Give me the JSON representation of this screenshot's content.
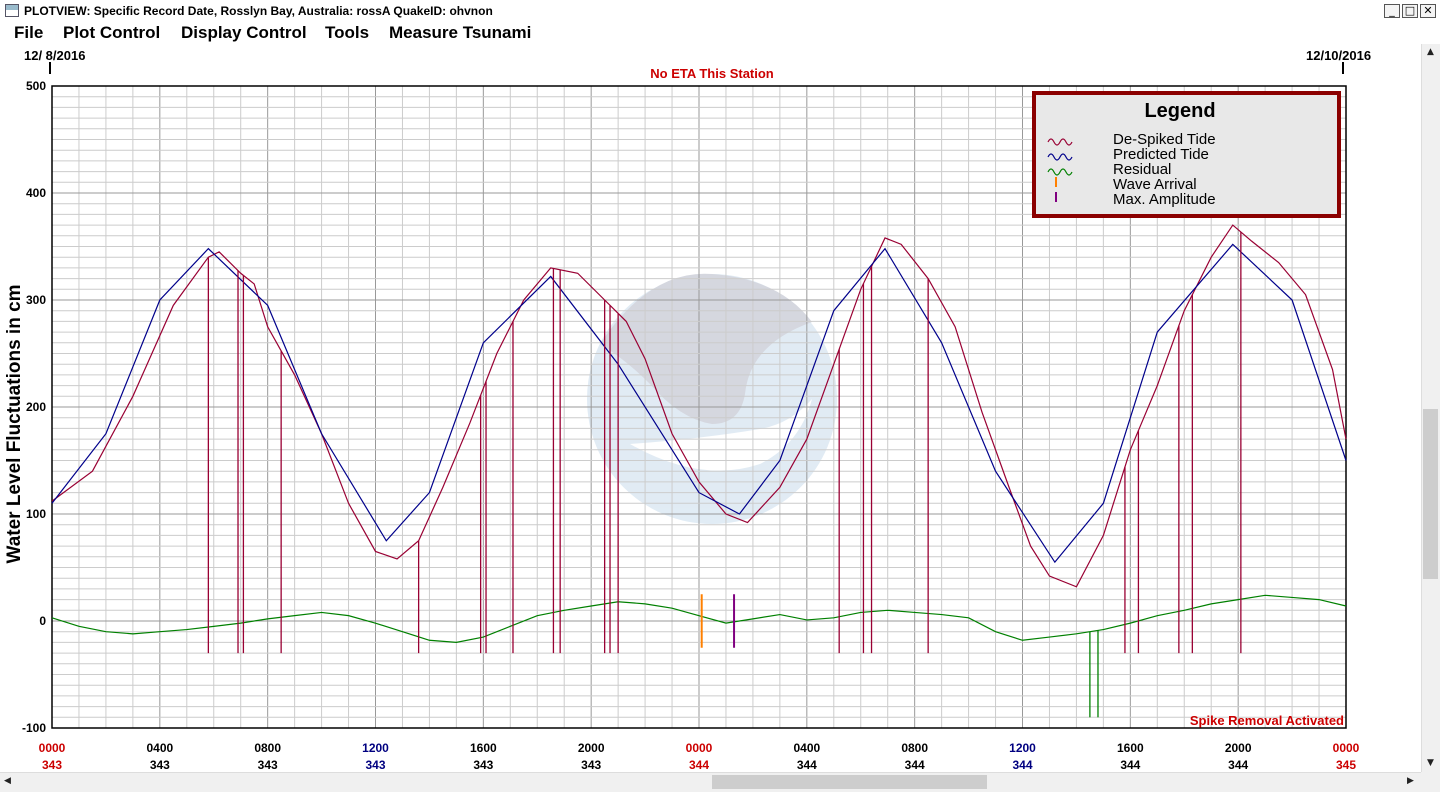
{
  "window": {
    "title": "PLOTVIEW: Specific Record Date, Rosslyn Bay, Australia: rossA     QuakeID: ohvnon",
    "controls": [
      "_",
      "□",
      "✕"
    ]
  },
  "menu": [
    "File",
    "Plot Control",
    "Display Control",
    "Tools",
    "Measure Tsunami"
  ],
  "header": {
    "start_date": "12/ 8/2016",
    "end_date": "12/10/2016",
    "eta_status": "No ETA This Station"
  },
  "footer_status": "Spike Removal Activated",
  "colors": {
    "de_spiked": "#990033",
    "predicted": "#00008b",
    "residual": "#008000",
    "wave_arrival": "#ff8000",
    "max_amplitude": "#800080",
    "status_red": "#cc0000",
    "time_blue": "#000080",
    "legend_border": "#8b0000"
  },
  "chart_data": {
    "type": "line",
    "ylabel": "Water Level Fluctuations in cm",
    "ylim": [
      -100,
      500
    ],
    "y_ticks": [
      -100,
      0,
      100,
      200,
      300,
      400,
      500
    ],
    "xlim": [
      0,
      48
    ],
    "x_tick_labels": [
      {
        "time": "0000",
        "day": "343"
      },
      {
        "time": "0400",
        "day": "343"
      },
      {
        "time": "0800",
        "day": "343"
      },
      {
        "time": "1200",
        "day": "343"
      },
      {
        "time": "1600",
        "day": "343"
      },
      {
        "time": "2000",
        "day": "343"
      },
      {
        "time": "0000",
        "day": "344"
      },
      {
        "time": "0400",
        "day": "344"
      },
      {
        "time": "0800",
        "day": "344"
      },
      {
        "time": "1200",
        "day": "344"
      },
      {
        "time": "1600",
        "day": "344"
      },
      {
        "time": "2000",
        "day": "344"
      },
      {
        "time": "0000",
        "day": "345"
      }
    ],
    "legend": {
      "title": "Legend",
      "entries": [
        "De-Spiked Tide",
        "Predicted Tide",
        "Residual",
        "Wave Arrival",
        "Max. Amplitude"
      ]
    },
    "series": [
      {
        "name": "Predicted Tide",
        "x": [
          0,
          2,
          4,
          5.8,
          8,
          10,
          12.4,
          14,
          16,
          18.5,
          21,
          24,
          25.5,
          27,
          29,
          30.9,
          33,
          35,
          37.2,
          39,
          41,
          43.8,
          46,
          48
        ],
        "y": [
          110,
          175,
          300,
          348,
          295,
          175,
          75,
          120,
          260,
          322,
          240,
          120,
          100,
          150,
          290,
          348,
          260,
          140,
          55,
          110,
          270,
          352,
          300,
          150
        ]
      },
      {
        "name": "De-Spiked Tide",
        "x": [
          0,
          1.5,
          3,
          4.5,
          5.8,
          6.2,
          7,
          7.5,
          8,
          9,
          10,
          11,
          12,
          12.8,
          13.6,
          14.5,
          15.5,
          16.5,
          17.5,
          18.5,
          19.5,
          20.5,
          21.3,
          22,
          23,
          24,
          25,
          25.8,
          27,
          28,
          29,
          30,
          30.9,
          31.5,
          32.5,
          33.5,
          34.5,
          35.5,
          36.3,
          37,
          38,
          39,
          40,
          41,
          42,
          43,
          43.8,
          44.5,
          45.5,
          46.5,
          47.5,
          48
        ],
        "y": [
          112,
          140,
          210,
          295,
          340,
          345,
          325,
          315,
          275,
          230,
          175,
          110,
          65,
          58,
          75,
          125,
          185,
          250,
          300,
          330,
          325,
          300,
          280,
          245,
          175,
          130,
          100,
          92,
          125,
          170,
          240,
          310,
          358,
          352,
          320,
          275,
          195,
          125,
          70,
          42,
          32,
          80,
          160,
          220,
          290,
          340,
          370,
          355,
          335,
          305,
          235,
          170
        ]
      },
      {
        "name": "Residual",
        "x": [
          0,
          1,
          2,
          3,
          4,
          5,
          6,
          7,
          8,
          9,
          10,
          11,
          12,
          13,
          14,
          15,
          16,
          17,
          18,
          19,
          20,
          21,
          22,
          23,
          24,
          25,
          26,
          27,
          28,
          29,
          30,
          31,
          32,
          33,
          34,
          35,
          36,
          37,
          38,
          39,
          40,
          41,
          42,
          43,
          44,
          45,
          46,
          47,
          48
        ],
        "y": [
          3,
          -5,
          -10,
          -12,
          -10,
          -8,
          -5,
          -2,
          2,
          5,
          8,
          5,
          -2,
          -10,
          -18,
          -20,
          -15,
          -5,
          5,
          10,
          14,
          18,
          16,
          12,
          5,
          -2,
          2,
          6,
          1,
          3,
          8,
          10,
          8,
          6,
          3,
          -10,
          -18,
          -15,
          -12,
          -8,
          -2,
          5,
          10,
          16,
          20,
          24,
          22,
          20,
          14
        ]
      }
    ],
    "spikes": {
      "de_spiked_drops_x": [
        5.8,
        6.9,
        7.1,
        8.5,
        13.6,
        15.9,
        16.1,
        17.1,
        18.6,
        18.85,
        20.5,
        20.7,
        21.0,
        29.2,
        30.1,
        30.4,
        32.5,
        39.8,
        40.3,
        41.8,
        42.3,
        44.1
      ],
      "drop_floor": -30,
      "residual_drops_x": [
        38.5,
        38.8
      ],
      "residual_drop_floor": -90
    },
    "wave_arrival": {
      "x": 24.1,
      "y_range": [
        -25,
        25
      ]
    },
    "max_amplitude": {
      "x": 25.3,
      "y_range": [
        -25,
        25
      ]
    }
  }
}
